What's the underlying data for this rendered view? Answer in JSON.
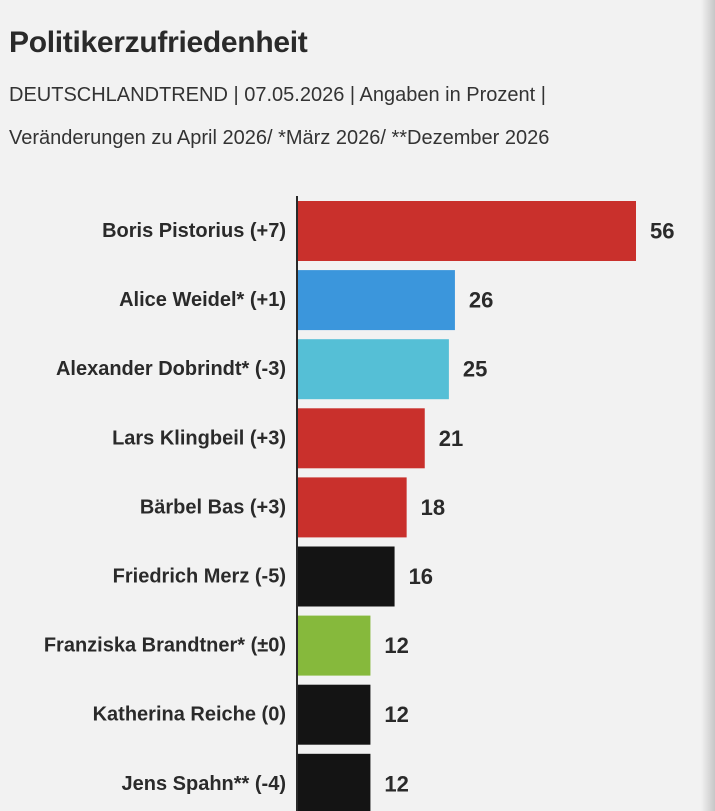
{
  "header": {
    "title": "Politikerzufriedenheit",
    "subtitle_line1": "DEUTSCHLANDTREND | 07.05.2026 | Angaben in Prozent |",
    "subtitle_line2": "Veränderungen zu April 2026/ *März 2026/ **Dezember 2026"
  },
  "chart_data": {
    "type": "bar",
    "orientation": "horizontal",
    "categories": [
      "Boris Pistorius (+7)",
      "Alice Weidel* (+1)",
      "Alexander Dobrindt* (-3)",
      "Lars Klingbeil (+3)",
      "Bärbel Bas (+3)",
      "Friedrich Merz (-5)",
      "Franziska Brandtner* (±0)",
      "Katherina Reiche (0)",
      "Jens Spahn** (-4)"
    ],
    "values": [
      56,
      26,
      25,
      21,
      18,
      16,
      12,
      12,
      12
    ],
    "colors": [
      "#c9302c",
      "#3b96dc",
      "#55bfd6",
      "#c9302c",
      "#c9302c",
      "#141414",
      "#86b93c",
      "#141414",
      "#141414"
    ],
    "xlim": [
      0,
      56
    ],
    "grid": false,
    "legend": "none"
  }
}
